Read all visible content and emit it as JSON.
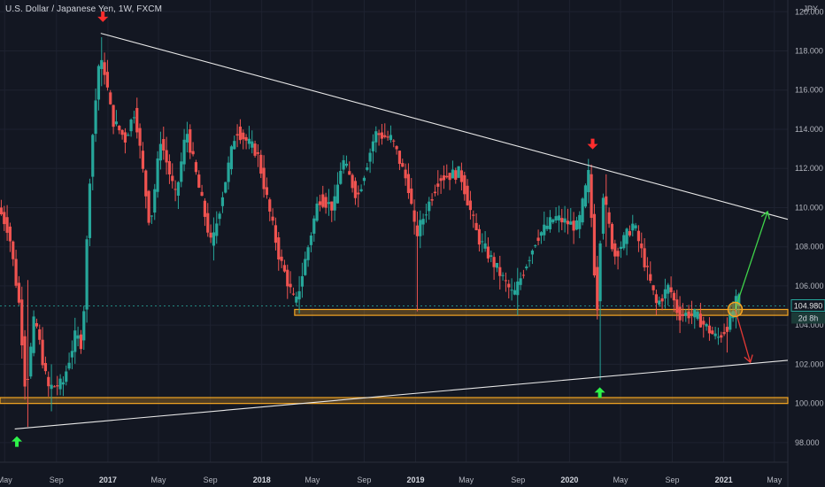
{
  "header": {
    "title": "U.S. Dollar / Japanese Yen, 1W, FXCM",
    "currency": "JPY"
  },
  "price_badges": {
    "last_price": "104.980",
    "countdown": "2d 8h"
  },
  "colors": {
    "background": "#131722",
    "up_candle": "#26a69a",
    "down_candle": "#ef5350",
    "trendline": "#e8e8e8",
    "zone": "#f5a623",
    "last_price_line": "#26a69a",
    "arrow_up": "#2ef24a",
    "arrow_down": "#ff2d2d",
    "scenario_up": "#3fd34a",
    "scenario_down": "#e53935",
    "marker_circle": "#f5a623"
  },
  "chart_data": {
    "type": "candlestick",
    "title": "U.S. Dollar / Japanese Yen, 1W, FXCM",
    "ylabel": "JPY",
    "ylim": [
      97,
      120.6
    ],
    "xlim": [
      "2016-04-20",
      "2021-06-02"
    ],
    "yticks": [
      "98.000",
      "100.000",
      "102.000",
      "104.000",
      "106.000",
      "108.000",
      "110.000",
      "112.000",
      "114.000",
      "116.000",
      "118.000",
      "120.000"
    ],
    "xticks": [
      {
        "date": "2016-05-01",
        "label": "May",
        "year": false
      },
      {
        "date": "2016-09-01",
        "label": "Sep",
        "year": false
      },
      {
        "date": "2017-01-01",
        "label": "2017",
        "year": true
      },
      {
        "date": "2017-05-01",
        "label": "May",
        "year": false
      },
      {
        "date": "2017-09-01",
        "label": "Sep",
        "year": false
      },
      {
        "date": "2018-01-01",
        "label": "2018",
        "year": true
      },
      {
        "date": "2018-05-01",
        "label": "May",
        "year": false
      },
      {
        "date": "2018-09-01",
        "label": "Sep",
        "year": false
      },
      {
        "date": "2019-01-01",
        "label": "2019",
        "year": true
      },
      {
        "date": "2019-05-01",
        "label": "May",
        "year": false
      },
      {
        "date": "2019-09-01",
        "label": "Sep",
        "year": false
      },
      {
        "date": "2020-01-01",
        "label": "2020",
        "year": true
      },
      {
        "date": "2020-05-01",
        "label": "May",
        "year": false
      },
      {
        "date": "2020-09-01",
        "label": "Sep",
        "year": false
      },
      {
        "date": "2021-01-01",
        "label": "2021",
        "year": true
      },
      {
        "date": "2021-05-01",
        "label": "May",
        "year": false
      }
    ],
    "price_path": [
      [
        "2016-04-20",
        110.0
      ],
      [
        "2016-05-15",
        108.8
      ],
      [
        "2016-06-10",
        104.8
      ],
      [
        "2016-06-24",
        100.5
      ],
      [
        "2016-07-15",
        104.5
      ],
      [
        "2016-08-15",
        100.8
      ],
      [
        "2016-09-20",
        101.0
      ],
      [
        "2016-10-20",
        103.5
      ],
      [
        "2016-11-05",
        103.0
      ],
      [
        "2016-11-25",
        112.5
      ],
      [
        "2016-12-15",
        117.5
      ],
      [
        "2016-12-28",
        117.0
      ],
      [
        "2017-01-15",
        114.5
      ],
      [
        "2017-02-15",
        113.5
      ],
      [
        "2017-03-10",
        115.0
      ],
      [
        "2017-04-15",
        109.0
      ],
      [
        "2017-05-10",
        113.5
      ],
      [
        "2017-06-15",
        110.5
      ],
      [
        "2017-07-10",
        114.0
      ],
      [
        "2017-09-08",
        108.0
      ],
      [
        "2017-11-05",
        114.0
      ],
      [
        "2017-12-25",
        112.8
      ],
      [
        "2018-02-15",
        107.5
      ],
      [
        "2018-03-26",
        105.0
      ],
      [
        "2018-05-20",
        110.5
      ],
      [
        "2018-06-25",
        110.0
      ],
      [
        "2018-07-15",
        112.5
      ],
      [
        "2018-08-20",
        110.5
      ],
      [
        "2018-10-01",
        113.8
      ],
      [
        "2018-11-10",
        113.5
      ],
      [
        "2018-12-20",
        111.0
      ],
      [
        "2019-01-05",
        108.5
      ],
      [
        "2019-03-01",
        111.5
      ],
      [
        "2019-04-20",
        111.8
      ],
      [
        "2019-06-01",
        108.5
      ],
      [
        "2019-08-25",
        105.5
      ],
      [
        "2019-10-20",
        108.5
      ],
      [
        "2019-12-01",
        109.5
      ],
      [
        "2020-01-25",
        109.0
      ],
      [
        "2020-02-20",
        111.8
      ],
      [
        "2020-03-10",
        104.5
      ],
      [
        "2020-03-23",
        111.0
      ],
      [
        "2020-04-20",
        107.5
      ],
      [
        "2020-06-05",
        109.2
      ],
      [
        "2020-07-30",
        105.0
      ],
      [
        "2020-08-28",
        106.0
      ],
      [
        "2020-09-20",
        104.5
      ],
      [
        "2020-10-25",
        104.6
      ],
      [
        "2020-11-20",
        104.0
      ],
      [
        "2020-12-20",
        103.3
      ],
      [
        "2021-01-10",
        103.8
      ],
      [
        "2021-01-30",
        104.9
      ],
      [
        "2021-02-05",
        105.3
      ]
    ],
    "wick_spikes": [
      {
        "date": "2016-06-24",
        "high": 106.3,
        "low": 98.8
      },
      {
        "date": "2016-08-15",
        "high": 102.0,
        "low": 99.6
      },
      {
        "date": "2016-12-15",
        "high": 118.7,
        "low": 116.2
      },
      {
        "date": "2017-09-08",
        "high": 109.5,
        "low": 107.3
      },
      {
        "date": "2018-03-26",
        "high": 106.5,
        "low": 104.6
      },
      {
        "date": "2019-01-03",
        "high": 109.8,
        "low": 104.7
      },
      {
        "date": "2019-08-25",
        "high": 106.7,
        "low": 104.5
      },
      {
        "date": "2020-02-20",
        "high": 112.2,
        "low": 109.8
      },
      {
        "date": "2020-03-09",
        "high": 106.0,
        "low": 101.2
      },
      {
        "date": "2020-03-23",
        "high": 111.7,
        "low": 108.0
      },
      {
        "date": "2021-01-03",
        "high": 104.4,
        "low": 102.6
      }
    ],
    "trendlines": [
      {
        "name": "upper",
        "from": [
          "2016-12-15",
          118.9
        ],
        "to": [
          "2021-06-02",
          109.4
        ]
      },
      {
        "name": "lower",
        "from": [
          "2016-05-25",
          98.7
        ],
        "to": [
          "2021-06-02",
          102.2
        ]
      }
    ],
    "zones": [
      {
        "name": "support-upper",
        "from": "2018-03-20",
        "to": "2021-06-02",
        "low": 104.5,
        "high": 104.8
      },
      {
        "name": "support-lower",
        "from": "2016-04-20",
        "to": "2021-06-02",
        "low": 100.0,
        "high": 100.3
      }
    ],
    "last_price": 104.98,
    "arrows": [
      {
        "dir": "down",
        "date": "2016-12-20",
        "price": 119.7
      },
      {
        "dir": "down",
        "date": "2020-02-25",
        "price": 113.2
      },
      {
        "dir": "up",
        "date": "2016-05-30",
        "price": 98.1
      },
      {
        "dir": "up",
        "date": "2020-03-13",
        "price": 100.6
      }
    ],
    "scenarios": [
      {
        "dir": "up",
        "from": [
          "2021-01-28",
          104.8
        ],
        "to": [
          "2021-04-15",
          109.8
        ]
      },
      {
        "dir": "down",
        "from": [
          "2021-01-28",
          104.8
        ],
        "to": [
          "2021-03-05",
          102.1
        ]
      }
    ],
    "marker_circle": {
      "date": "2021-01-28",
      "price": 104.8
    }
  }
}
